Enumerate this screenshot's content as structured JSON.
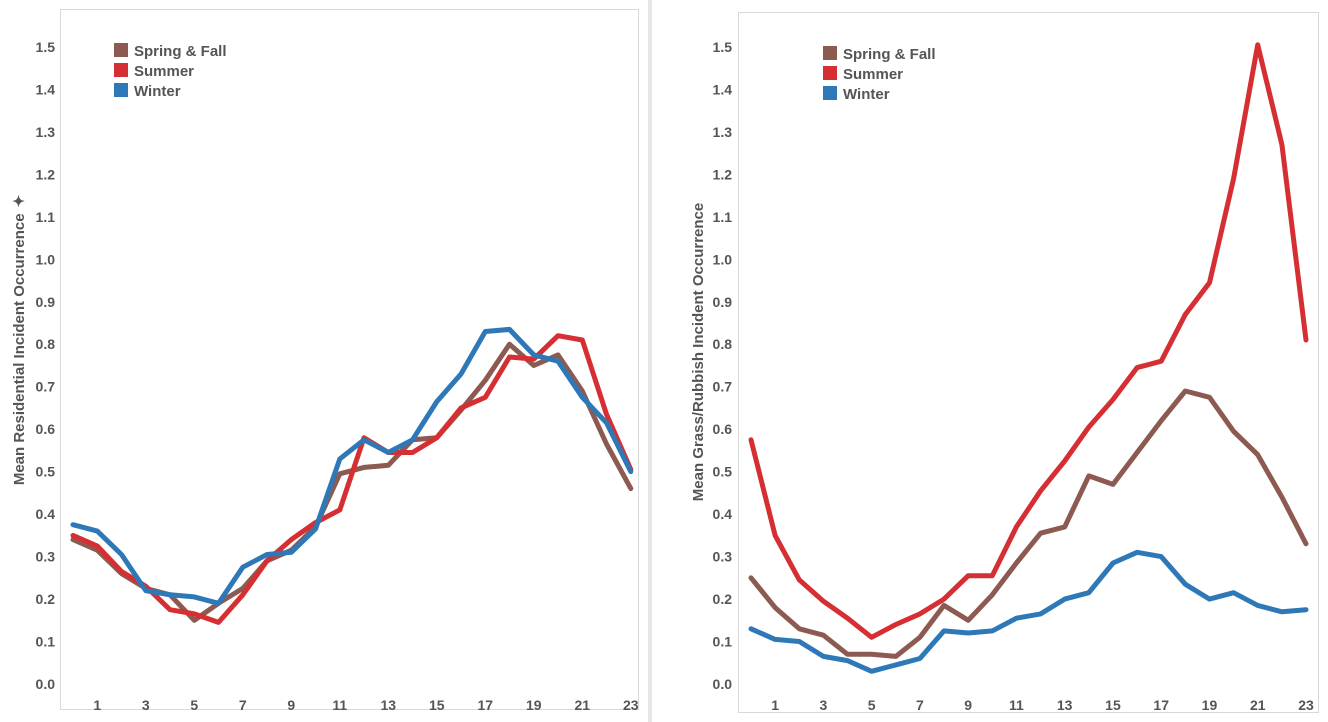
{
  "chart_data": [
    {
      "type": "line",
      "ylabel": "Mean Residential Incident Occurrence",
      "ylabel_marker": "✦",
      "x": [
        0,
        1,
        2,
        3,
        4,
        5,
        6,
        7,
        8,
        9,
        10,
        11,
        12,
        13,
        14,
        15,
        16,
        17,
        18,
        19,
        20,
        21,
        22,
        23
      ],
      "x_tick_labels": [
        "1",
        "3",
        "5",
        "7",
        "9",
        "11",
        "13",
        "15",
        "17",
        "19",
        "21",
        "23"
      ],
      "y_tick_labels": [
        "0.0",
        "0.1",
        "0.2",
        "0.3",
        "0.4",
        "0.5",
        "0.6",
        "0.7",
        "0.8",
        "0.9",
        "1.0",
        "1.1",
        "1.2",
        "1.3",
        "1.4",
        "1.5"
      ],
      "ylim": [
        0,
        1.5
      ],
      "legend_position": "top-left",
      "grid": false,
      "series": [
        {
          "name": "Spring & Fall",
          "color": "#8c5a50",
          "values": [
            0.34,
            0.315,
            0.26,
            0.225,
            0.21,
            0.15,
            0.19,
            0.225,
            0.29,
            0.315,
            0.37,
            0.495,
            0.51,
            0.515,
            0.575,
            0.58,
            0.645,
            0.715,
            0.8,
            0.75,
            0.775,
            0.69,
            0.565,
            0.46
          ]
        },
        {
          "name": "Summer",
          "color": "#d62f33",
          "values": [
            0.35,
            0.325,
            0.265,
            0.23,
            0.175,
            0.165,
            0.145,
            0.21,
            0.29,
            0.34,
            0.38,
            0.41,
            0.58,
            0.545,
            0.545,
            0.58,
            0.65,
            0.675,
            0.77,
            0.765,
            0.82,
            0.81,
            0.635,
            0.505
          ]
        },
        {
          "name": "Winter",
          "color": "#2e78b8",
          "values": [
            0.375,
            0.36,
            0.305,
            0.22,
            0.21,
            0.205,
            0.19,
            0.275,
            0.305,
            0.31,
            0.365,
            0.53,
            0.575,
            0.545,
            0.575,
            0.665,
            0.73,
            0.83,
            0.835,
            0.775,
            0.76,
            0.675,
            0.615,
            0.5
          ]
        }
      ]
    },
    {
      "type": "line",
      "ylabel": "Mean Grass/Rubbish Incident Occurrence",
      "x": [
        0,
        1,
        2,
        3,
        4,
        5,
        6,
        7,
        8,
        9,
        10,
        11,
        12,
        13,
        14,
        15,
        16,
        17,
        18,
        19,
        20,
        21,
        22,
        23
      ],
      "x_tick_labels": [
        "1",
        "3",
        "5",
        "7",
        "9",
        "11",
        "13",
        "15",
        "17",
        "19",
        "21",
        "23"
      ],
      "y_tick_labels": [
        "0.0",
        "0.1",
        "0.2",
        "0.3",
        "0.4",
        "0.5",
        "0.6",
        "0.7",
        "0.8",
        "0.9",
        "1.0",
        "1.1",
        "1.2",
        "1.3",
        "1.4",
        "1.5"
      ],
      "ylim": [
        0,
        1.5
      ],
      "legend_position": "top-left",
      "grid": false,
      "series": [
        {
          "name": "Spring & Fall",
          "color": "#8c5a50",
          "values": [
            0.25,
            0.18,
            0.13,
            0.115,
            0.07,
            0.07,
            0.065,
            0.11,
            0.185,
            0.15,
            0.21,
            0.285,
            0.355,
            0.37,
            0.49,
            0.47,
            0.545,
            0.62,
            0.69,
            0.675,
            0.595,
            0.54,
            0.44,
            0.33
          ]
        },
        {
          "name": "Summer",
          "color": "#d62f33",
          "values": [
            0.575,
            0.35,
            0.245,
            0.195,
            0.155,
            0.11,
            0.14,
            0.165,
            0.2,
            0.255,
            0.255,
            0.37,
            0.455,
            0.525,
            0.605,
            0.67,
            0.745,
            0.76,
            0.87,
            0.945,
            1.19,
            1.505,
            1.27,
            0.81
          ]
        },
        {
          "name": "Winter",
          "color": "#2e78b8",
          "values": [
            0.13,
            0.105,
            0.1,
            0.065,
            0.055,
            0.03,
            0.045,
            0.06,
            0.125,
            0.12,
            0.125,
            0.155,
            0.165,
            0.2,
            0.215,
            0.285,
            0.31,
            0.3,
            0.235,
            0.2,
            0.215,
            0.185,
            0.17,
            0.175
          ]
        }
      ]
    }
  ]
}
